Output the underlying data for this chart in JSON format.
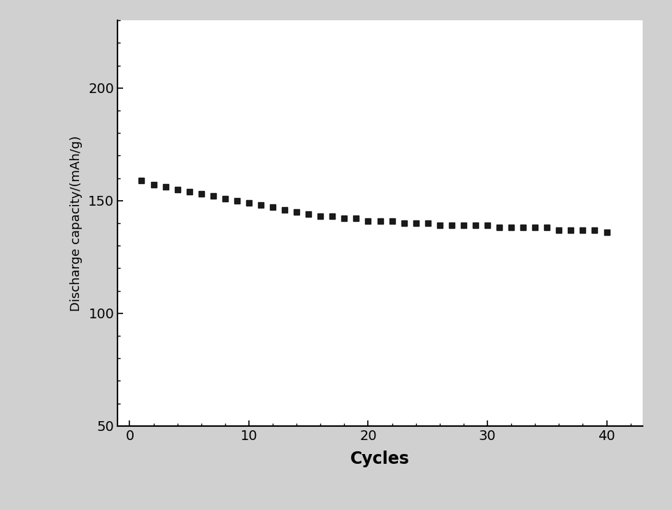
{
  "x_values": [
    1,
    2,
    3,
    4,
    5,
    6,
    7,
    8,
    9,
    10,
    11,
    12,
    13,
    14,
    15,
    16,
    17,
    18,
    19,
    20,
    21,
    22,
    23,
    24,
    25,
    26,
    27,
    28,
    29,
    30,
    31,
    32,
    33,
    34,
    35,
    36,
    37,
    38,
    39,
    40
  ],
  "y_values": [
    159,
    157,
    156,
    155,
    154,
    153,
    152,
    151,
    150,
    149,
    148,
    147,
    146,
    145,
    144,
    143,
    143,
    142,
    142,
    141,
    141,
    141,
    140,
    140,
    140,
    139,
    139,
    139,
    139,
    139,
    138,
    138,
    138,
    138,
    138,
    137,
    137,
    137,
    137,
    136
  ],
  "xlabel": "Cycles",
  "ylabel": "Discharge capacity/(mAh/g)",
  "xlim": [
    -1,
    43
  ],
  "ylim": [
    50,
    230
  ],
  "yticks": [
    50,
    100,
    150,
    200
  ],
  "xticks": [
    0,
    10,
    20,
    30,
    40
  ],
  "marker": "s",
  "marker_color": "#1a1a1a",
  "marker_size": 6,
  "linewidth": 0,
  "background_color": "#ffffff",
  "outer_background": "#d0d0d0",
  "xlabel_fontsize": 17,
  "ylabel_fontsize": 13,
  "tick_fontsize": 14,
  "xlabel_fontweight": "bold",
  "ylabel_fontweight": "normal"
}
